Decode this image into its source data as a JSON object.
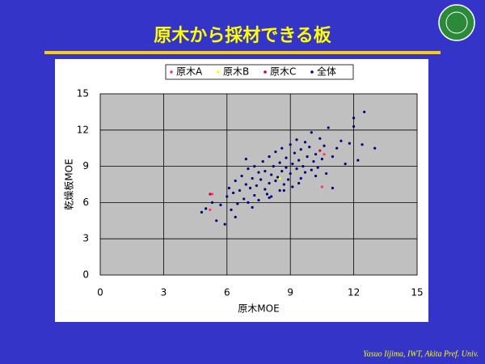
{
  "slide": {
    "title": "原木から採材できる板",
    "footer": "Yasuo Iijima, IWT, Akita Pref.  Univ."
  },
  "chart_data": {
    "type": "scatter",
    "x_label": "原木MOE",
    "y_label": "乾燥板MOE",
    "xlim": [
      0,
      15
    ],
    "ylim": [
      0,
      15
    ],
    "xticks": [
      0,
      3,
      6,
      9,
      12,
      15
    ],
    "yticks": [
      0,
      3,
      6,
      9,
      12,
      15
    ],
    "grid": true,
    "legend": "top",
    "series": [
      {
        "name": "原木A",
        "color": "#ff3366",
        "x": [
          5.3,
          5.2,
          10.5,
          10.6
        ],
        "y": [
          6.7,
          5.4,
          7.3,
          10.0
        ]
      },
      {
        "name": "原木B",
        "color": "#ffff00",
        "x": [
          8.5
        ],
        "y": [
          8.0
        ]
      },
      {
        "name": "原木C",
        "color": "#cc0033",
        "x": [
          10.4,
          5.2
        ],
        "y": [
          10.3,
          6.7
        ]
      },
      {
        "name": "全体",
        "color": "#000080",
        "x": [
          4.8,
          5.0,
          5.3,
          5.5,
          5.7,
          5.9,
          6.0,
          6.1,
          6.2,
          6.3,
          6.4,
          6.5,
          6.6,
          6.7,
          6.8,
          6.9,
          7.0,
          7.0,
          7.1,
          7.2,
          7.3,
          7.3,
          7.4,
          7.5,
          7.5,
          7.6,
          7.7,
          7.8,
          7.8,
          7.9,
          8.0,
          8.0,
          8.1,
          8.1,
          8.2,
          8.3,
          8.3,
          8.4,
          8.5,
          8.5,
          8.6,
          8.6,
          8.7,
          8.8,
          8.8,
          8.9,
          9.0,
          9.0,
          9.1,
          9.1,
          9.2,
          9.3,
          9.3,
          9.4,
          9.5,
          9.5,
          9.6,
          9.7,
          9.7,
          9.8,
          9.9,
          10.0,
          10.0,
          10.1,
          10.2,
          10.3,
          10.4,
          10.5,
          10.6,
          10.7,
          10.8,
          11.0,
          11.2,
          11.4,
          11.6,
          11.8,
          12.0,
          12.0,
          12.2,
          12.4,
          12.5,
          13.0,
          6.4,
          7.2,
          8.0,
          8.7,
          9.4,
          10.2,
          11.0,
          6.9
        ],
        "y": [
          5.2,
          5.5,
          6.0,
          4.5,
          5.8,
          4.2,
          6.5,
          7.2,
          5.4,
          6.8,
          7.8,
          5.9,
          7.0,
          8.2,
          6.3,
          7.5,
          8.8,
          6.0,
          7.2,
          8.0,
          6.6,
          9.0,
          7.4,
          8.5,
          6.2,
          7.9,
          9.4,
          7.1,
          8.6,
          6.7,
          9.8,
          7.6,
          8.3,
          6.5,
          9.0,
          7.8,
          10.2,
          8.1,
          7.0,
          9.3,
          8.6,
          10.5,
          7.5,
          8.9,
          9.7,
          7.9,
          10.8,
          8.4,
          9.2,
          7.3,
          10.1,
          8.8,
          11.2,
          9.5,
          8.0,
          10.4,
          9.0,
          11.0,
          8.5,
          9.8,
          10.6,
          8.7,
          11.8,
          9.4,
          10.0,
          8.9,
          11.3,
          9.6,
          10.7,
          8.4,
          12.2,
          9.8,
          10.5,
          11.1,
          9.2,
          10.9,
          13.0,
          12.3,
          9.5,
          10.8,
          13.5,
          10.5,
          4.8,
          5.6,
          6.4,
          7.0,
          7.6,
          8.2,
          7.2,
          9.6
        ]
      }
    ]
  }
}
